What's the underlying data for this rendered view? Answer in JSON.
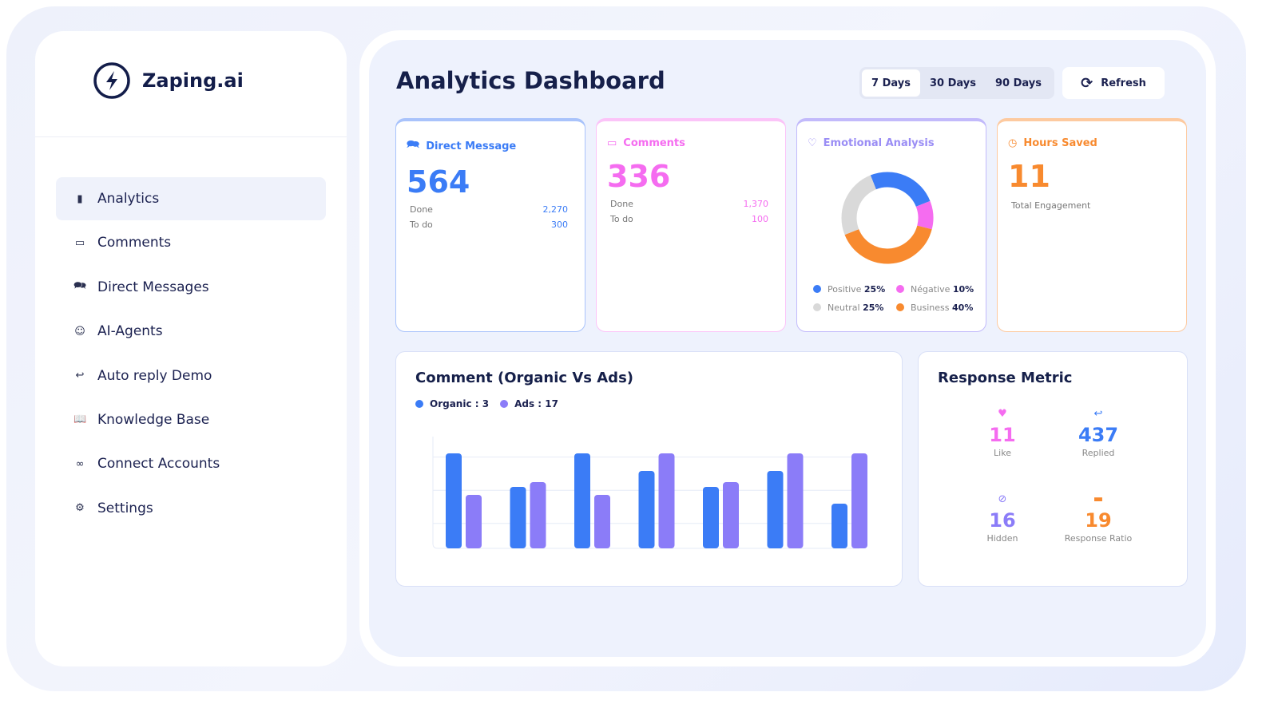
{
  "brand": {
    "name": "Zaping.ai"
  },
  "sidebar": {
    "items": [
      {
        "label": "Analytics",
        "icon": "bar-chart-icon",
        "active": true
      },
      {
        "label": "Comments",
        "icon": "comment-icon"
      },
      {
        "label": "Direct Messages",
        "icon": "messages-icon"
      },
      {
        "label": "AI-Agents",
        "icon": "robot-icon"
      },
      {
        "label": "Auto reply  Demo",
        "icon": "reply-icon"
      },
      {
        "label": "Knowledge Base",
        "icon": "book-icon"
      },
      {
        "label": "Connect Accounts",
        "icon": "link-icon"
      },
      {
        "label": "Settings",
        "icon": "gear-icon"
      }
    ]
  },
  "header": {
    "title": "Analytics Dashboard",
    "ranges": [
      "7 Days",
      "30 Days",
      "90 Days"
    ],
    "selected_range": "7 Days",
    "refresh_label": "Refresh"
  },
  "cards": {
    "dm": {
      "title": "Direct Message",
      "value": "564",
      "done_label": "Done",
      "done": "2,270",
      "todo_label": "To do",
      "todo": "300",
      "color": "#3b7cf6"
    },
    "comments": {
      "title": "Comments",
      "value": "336",
      "done_label": "Done",
      "done": "1,370",
      "todo_label": "To do",
      "todo": "100",
      "color": "#f56cf0"
    },
    "emotion": {
      "title": "Emotional Analysis",
      "color": "#9a8df5",
      "legend": [
        {
          "label": "Positive",
          "value": "25%",
          "color": "#3b7cf6"
        },
        {
          "label": "Négative",
          "value": "10%",
          "color": "#f56cf0"
        },
        {
          "label": "Neutral",
          "value": "25%",
          "color": "#d9d9d9"
        },
        {
          "label": "Business",
          "value": "40%",
          "color": "#f88a2f"
        }
      ]
    },
    "hours": {
      "title": "Hours Saved",
      "value": "11",
      "subtitle": "Total Engagement",
      "color": "#f88a2f"
    }
  },
  "chart_data": {
    "type": "bar",
    "title": "Comment (Organic  Vs Ads)",
    "grid": true,
    "legend_position": "top-left",
    "series": [
      {
        "name": "Organic : 3",
        "color": "#3b7cf6",
        "values": [
          119,
          77,
          119,
          97,
          77,
          97,
          56
        ]
      },
      {
        "name": "Ads : 17",
        "color": "#8b7cf8",
        "values": [
          67,
          83,
          67,
          119,
          83,
          119,
          119
        ]
      }
    ],
    "ylim": [
      0,
      130
    ]
  },
  "response": {
    "title": "Response Metric",
    "items": [
      {
        "value": "11",
        "label": "Like",
        "icon": "heart-icon",
        "color": "#f56cf0"
      },
      {
        "value": "437",
        "label": "Replied",
        "icon": "reply-icon",
        "color": "#3b7cf6"
      },
      {
        "value": "16",
        "label": "Hidden",
        "icon": "eye-off-icon",
        "color": "#8b7cf8"
      },
      {
        "value": "19",
        "label": "Response Ratio",
        "icon": "message-square-icon",
        "color": "#f88a2f"
      }
    ]
  }
}
